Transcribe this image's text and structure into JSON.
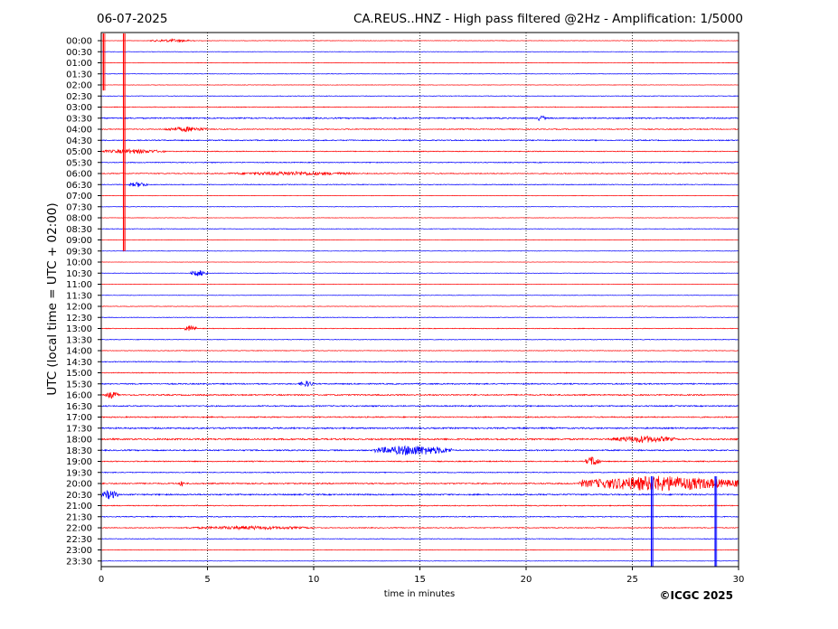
{
  "header": {
    "date": "06-07-2025",
    "title": "CA.REUS..HNZ - High pass filtered @2Hz - Amplification: 1/5000"
  },
  "footer": {
    "copyright": "©ICGC 2025"
  },
  "colors": {
    "trace_a": "#ff0000",
    "trace_b": "#0000ff",
    "axis": "#000000",
    "grid": "#000000"
  },
  "chart_data": {
    "type": "line",
    "title": "CA.REUS..HNZ - High pass filtered @2Hz - Amplification: 1/5000",
    "xlabel": "time in minutes",
    "ylabel": "UTC (local time = UTC + 02:00)",
    "xlim": [
      0,
      30
    ],
    "x_ticks": [
      0,
      5,
      10,
      15,
      20,
      25,
      30
    ],
    "grid": "vertical dotted lines at 5-minute intervals",
    "y_tick_labels": [
      "00:00",
      "00:30",
      "01:00",
      "01:30",
      "02:00",
      "02:30",
      "03:00",
      "03:30",
      "04:00",
      "04:30",
      "05:00",
      "05:30",
      "06:00",
      "06:30",
      "07:00",
      "07:30",
      "08:00",
      "08:30",
      "09:00",
      "09:30",
      "10:00",
      "10:30",
      "11:00",
      "11:30",
      "12:00",
      "12:30",
      "13:00",
      "13:30",
      "14:00",
      "14:30",
      "15:00",
      "15:30",
      "16:00",
      "16:30",
      "17:00",
      "17:30",
      "18:00",
      "18:30",
      "19:00",
      "19:30",
      "20:00",
      "20:30",
      "21:00",
      "21:30",
      "22:00",
      "22:30",
      "23:00",
      "23:30"
    ],
    "trace_color_cycle": [
      "red",
      "blue"
    ],
    "noise_levels": [
      0.1,
      0.1,
      0.12,
      0.12,
      0.1,
      0.14,
      0.18,
      0.3,
      0.22,
      0.25,
      0.2,
      0.2,
      0.22,
      0.18,
      0.12,
      0.12,
      0.1,
      0.14,
      0.1,
      0.1,
      0.08,
      0.1,
      0.1,
      0.1,
      0.12,
      0.14,
      0.16,
      0.15,
      0.14,
      0.2,
      0.2,
      0.28,
      0.3,
      0.28,
      0.28,
      0.34,
      0.38,
      0.3,
      0.25,
      0.2,
      0.3,
      0.32,
      0.22,
      0.22,
      0.2,
      0.16,
      0.12,
      0.1
    ],
    "events": [
      {
        "row": 0,
        "start": 2.3,
        "end": 4.4,
        "amplitude": 0.3
      },
      {
        "row": 7,
        "start": 20.5,
        "end": 20.9,
        "amplitude": 0.6
      },
      {
        "row": 8,
        "start": 3.0,
        "end": 5.0,
        "amplitude": 0.5
      },
      {
        "row": 10,
        "start": 0.0,
        "end": 3.0,
        "amplitude": 0.45
      },
      {
        "row": 12,
        "start": 6.0,
        "end": 12.0,
        "amplitude": 0.4
      },
      {
        "row": 13,
        "start": 1.3,
        "end": 2.2,
        "amplitude": 0.5
      },
      {
        "row": 21,
        "start": 4.2,
        "end": 5.0,
        "amplitude": 0.6
      },
      {
        "row": 26,
        "start": 3.9,
        "end": 4.5,
        "amplitude": 0.6
      },
      {
        "row": 31,
        "start": 9.3,
        "end": 10.0,
        "amplitude": 0.6
      },
      {
        "row": 32,
        "start": 0.2,
        "end": 0.8,
        "amplitude": 0.7
      },
      {
        "row": 36,
        "start": 24.0,
        "end": 27.0,
        "amplitude": 0.7
      },
      {
        "row": 37,
        "start": 12.8,
        "end": 16.5,
        "amplitude": 1.0
      },
      {
        "row": 38,
        "start": 22.8,
        "end": 23.5,
        "amplitude": 1.0
      },
      {
        "row": 40,
        "start": 22.5,
        "end": 30.0,
        "amplitude": 1.5
      },
      {
        "row": 40,
        "start": 3.7,
        "end": 3.9,
        "amplitude": 0.8
      },
      {
        "row": 41,
        "start": 0.0,
        "end": 0.8,
        "amplitude": 0.9
      },
      {
        "row": 44,
        "start": 4.0,
        "end": 10.0,
        "amplitude": 0.35
      }
    ],
    "spikes": [
      {
        "x": 0.1,
        "from_row": 0,
        "to_row": 4.5,
        "color": "red"
      },
      {
        "x": 1.05,
        "from_row": 0,
        "to_row": 19,
        "color": "red"
      },
      {
        "x": 25.9,
        "from_row": 40,
        "to_row": 48,
        "color": "blue"
      },
      {
        "x": 28.9,
        "from_row": 40,
        "to_row": 48,
        "color": "blue"
      }
    ]
  }
}
